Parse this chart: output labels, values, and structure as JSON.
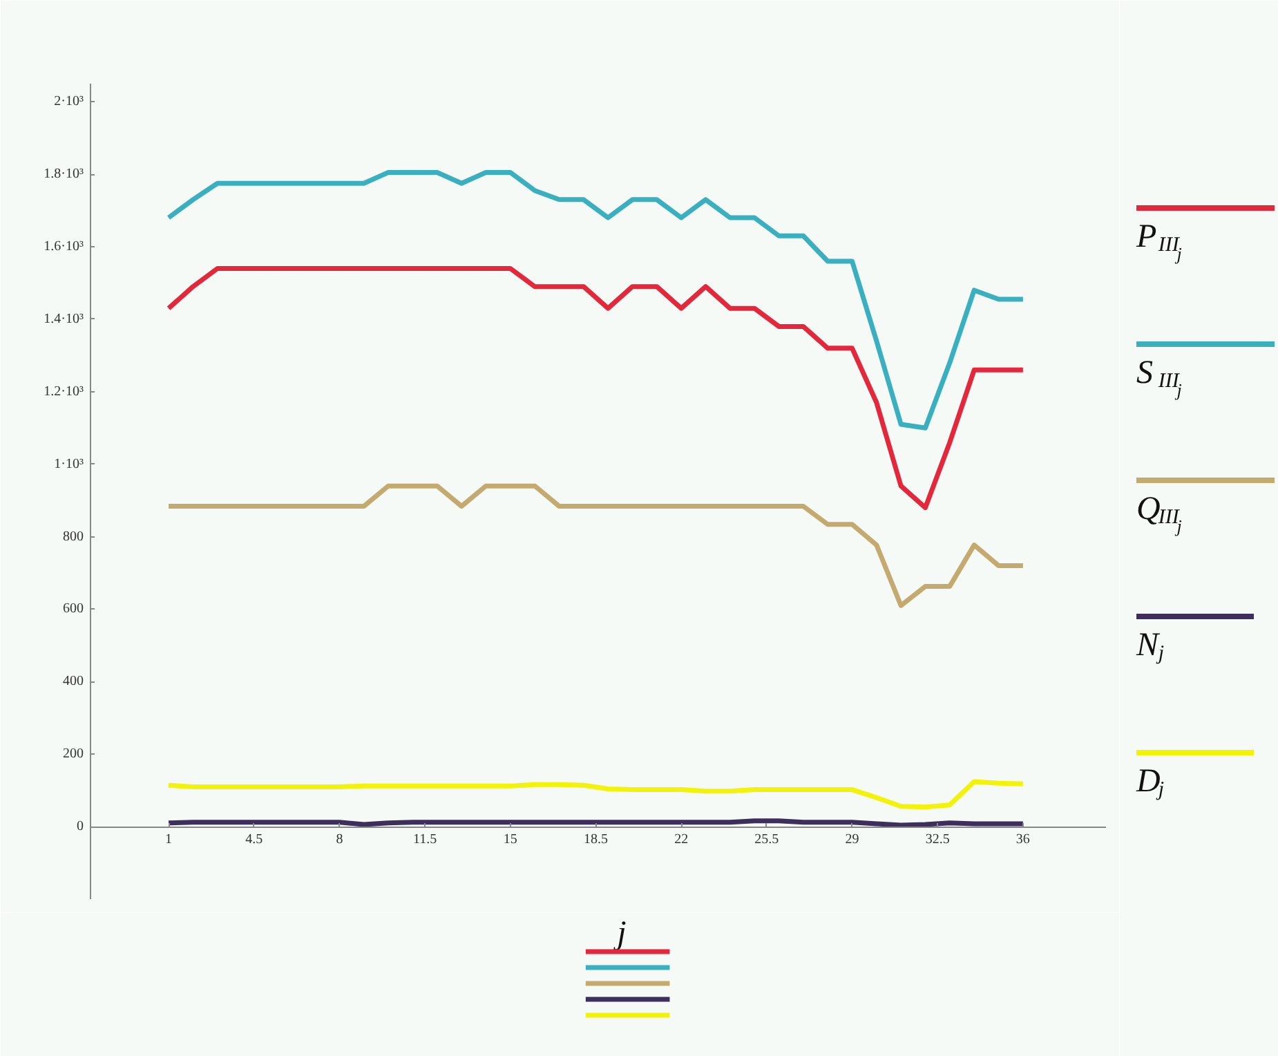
{
  "chart_data": {
    "type": "line",
    "xlabel": "j",
    "x": [
      1,
      2,
      3,
      4,
      5,
      6,
      7,
      8,
      9,
      10,
      11,
      12,
      13,
      14,
      15,
      16,
      17,
      18,
      19,
      20,
      21,
      22,
      23,
      24,
      25,
      26,
      27,
      28,
      29,
      30,
      31,
      32,
      33,
      34,
      35,
      36
    ],
    "series": [
      {
        "name": "P$_{III}$$_{j}$",
        "color": "#e3283c",
        "values": [
          1430,
          1490,
          1540,
          1540,
          1540,
          1540,
          1540,
          1540,
          1540,
          1540,
          1540,
          1540,
          1540,
          1540,
          1540,
          1490,
          1490,
          1490,
          1430,
          1490,
          1490,
          1430,
          1490,
          1430,
          1430,
          1380,
          1380,
          1320,
          1320,
          1170,
          940,
          880,
          1060,
          1260,
          1260,
          1260
        ]
      },
      {
        "name": "S$_{III}$$_{j}$",
        "color": "#3aafc0",
        "values": [
          1680,
          1730,
          1775,
          1775,
          1775,
          1775,
          1775,
          1775,
          1775,
          1805,
          1805,
          1805,
          1775,
          1805,
          1805,
          1755,
          1730,
          1730,
          1680,
          1730,
          1730,
          1680,
          1730,
          1680,
          1680,
          1630,
          1630,
          1560,
          1560,
          1340,
          1110,
          1100,
          1280,
          1480,
          1455,
          1455
        ]
      },
      {
        "name": "Q$_{III}$$_{j}$",
        "color": "#c4aa6e",
        "values": [
          884,
          884,
          884,
          884,
          884,
          884,
          884,
          884,
          884,
          940,
          940,
          940,
          884,
          940,
          940,
          940,
          884,
          884,
          884,
          884,
          884,
          884,
          884,
          884,
          884,
          884,
          884,
          834,
          834,
          777,
          610,
          663,
          663,
          777,
          720,
          720
        ]
      },
      {
        "name": "N$_{j}$",
        "color": "#3e2e5e",
        "values": [
          10,
          12,
          12,
          12,
          12,
          12,
          12,
          12,
          6,
          10,
          12,
          12,
          12,
          12,
          12,
          12,
          12,
          12,
          12,
          12,
          12,
          12,
          12,
          12,
          16,
          16,
          12,
          12,
          12,
          8,
          4,
          6,
          10,
          8,
          8,
          8
        ]
      },
      {
        "name": "D$_{j}$",
        "color": "#f2f20a",
        "values": [
          114,
          110,
          110,
          110,
          110,
          110,
          110,
          110,
          112,
          112,
          112,
          112,
          112,
          112,
          112,
          116,
          116,
          114,
          104,
          102,
          102,
          102,
          98,
          98,
          102,
          102,
          102,
          102,
          102,
          80,
          56,
          54,
          60,
          124,
          120,
          118
        ]
      }
    ],
    "xlim": [
      -2.2,
      39.4
    ],
    "ylim": [
      -200,
      2050
    ],
    "xticks": [
      1,
      4.5,
      8,
      11.5,
      15,
      18.5,
      22,
      25.5,
      29,
      32.5,
      36
    ],
    "yticks": [
      0,
      200,
      400,
      600,
      800,
      {
        "value": 1000,
        "label": "1·10³"
      },
      {
        "value": 1200,
        "label": "1.2·10³"
      },
      {
        "value": 1400,
        "label": "1.4·10³"
      },
      {
        "value": 1600,
        "label": "1.6·10³"
      },
      {
        "value": 1800,
        "label": "1.8·10³"
      },
      {
        "value": 2000,
        "label": "2·10³"
      }
    ],
    "grid": false,
    "legend": "right",
    "marker": "none",
    "line_style": "solid"
  }
}
